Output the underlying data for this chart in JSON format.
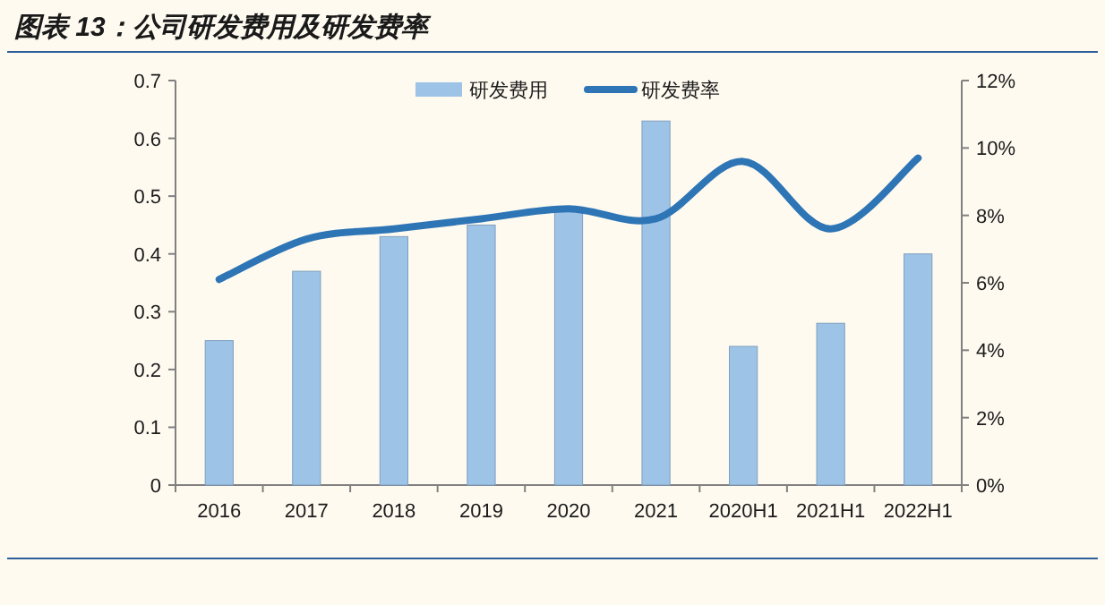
{
  "chart_data": {
    "type": "bar",
    "title": "图表 13：公司研发费用及研发费率",
    "categories": [
      "2016",
      "2017",
      "2018",
      "2019",
      "2020",
      "2021",
      "2020H1",
      "2021H1",
      "2022H1"
    ],
    "series": [
      {
        "name": "研发费用",
        "color": "#9dc3e6",
        "values": [
          0.25,
          0.37,
          0.43,
          0.45,
          0.48,
          0.63,
          0.24,
          0.28,
          0.4
        ]
      },
      {
        "name": "研发费率",
        "type": "line",
        "axis": "y2",
        "color": "#2e75b6",
        "values": [
          6.1,
          7.3,
          7.6,
          7.9,
          8.2,
          7.9,
          9.6,
          7.6,
          9.7
        ]
      }
    ],
    "ylim": [
      0,
      0.7
    ],
    "yticks": [
      0,
      0.1,
      0.2,
      0.3,
      0.4,
      0.5,
      0.6,
      0.7
    ],
    "y2lim": [
      0,
      12
    ],
    "y2ticks": [
      {
        "value": 0,
        "label": "0%"
      },
      {
        "value": 2,
        "label": "2%"
      },
      {
        "value": 4,
        "label": "4%"
      },
      {
        "value": 6,
        "label": "6%"
      },
      {
        "value": 8,
        "label": "8%"
      },
      {
        "value": 10,
        "label": "10%"
      },
      {
        "value": 12,
        "label": "12%"
      }
    ],
    "legend": "top",
    "grid": false
  }
}
